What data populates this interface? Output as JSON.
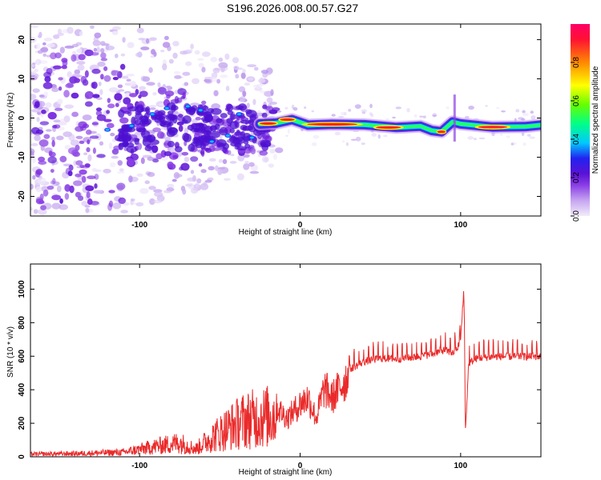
{
  "title": "S196.2026.008.00.57.G27",
  "colors": {
    "signal_line": "#ea2a2a",
    "colorbar_stops": [
      "#e9ddf8",
      "#c6a6f0",
      "#8b3ee6",
      "#5a12d6",
      "#2222f0",
      "#00c8ff",
      "#00ff88",
      "#66ff00",
      "#ffff00",
      "#ff8800",
      "#ff1133",
      "#ff0066"
    ]
  },
  "chart_data": [
    {
      "type": "heatmap",
      "name": "spectrogram",
      "xlabel": "Height of straight line (km)",
      "ylabel": "Frequency (Hz)",
      "xlim": [
        -168,
        150
      ],
      "ylim": [
        -25,
        24
      ],
      "xticks": [
        -100,
        0,
        100
      ],
      "yticks": [
        -20,
        -10,
        0,
        10,
        20
      ],
      "colorbar": {
        "label": "Normalized spectral amplitude",
        "range": [
          0,
          1
        ],
        "ticks": [
          "0.0",
          "0.2",
          "0.4",
          "0.6",
          "0.8"
        ],
        "tick_values": [
          0.0,
          0.2,
          0.4,
          0.6,
          0.8
        ]
      },
      "dominant_trace": {
        "description_points_km_hz": [
          [
            -25,
            -1.5
          ],
          [
            -15,
            -1.3
          ],
          [
            -5,
            -0.4
          ],
          [
            5,
            -1.8
          ],
          [
            20,
            -1.6
          ],
          [
            40,
            -1.7
          ],
          [
            60,
            -2.4
          ],
          [
            75,
            -2.1
          ],
          [
            82,
            -3.2
          ],
          [
            88,
            -3.5
          ],
          [
            95,
            -1.0
          ],
          [
            100,
            -1.5
          ],
          [
            120,
            -2.3
          ],
          [
            140,
            -2.2
          ],
          [
            150,
            -1.8
          ]
        ]
      }
    },
    {
      "type": "line",
      "name": "snr",
      "xlabel": "Height of straight line (km)",
      "ylabel": "SNR (10 * v/v)",
      "xlim": [
        -168,
        150
      ],
      "ylim": [
        0,
        1150
      ],
      "xticks": [
        -100,
        0,
        100
      ],
      "yticks": [
        0,
        200,
        400,
        600,
        800,
        1000
      ],
      "series": [
        {
          "name": "SNR",
          "envelope_x": [
            -168,
            -140,
            -110,
            -90,
            -75,
            -65,
            -55,
            -45,
            -35,
            -25,
            -15,
            -8,
            0,
            5,
            10,
            15,
            20,
            25,
            30,
            40,
            50,
            60,
            70,
            80,
            90,
            95,
            98,
            100,
            102,
            103,
            105,
            110,
            120,
            130,
            140,
            150
          ],
          "envelope_y": [
            20,
            25,
            35,
            80,
            110,
            60,
            150,
            220,
            280,
            300,
            320,
            250,
            340,
            380,
            250,
            440,
            380,
            450,
            520,
            570,
            590,
            585,
            595,
            610,
            640,
            620,
            650,
            700,
            1000,
            150,
            560,
            590,
            600,
            600,
            600,
            600
          ]
        }
      ]
    }
  ]
}
